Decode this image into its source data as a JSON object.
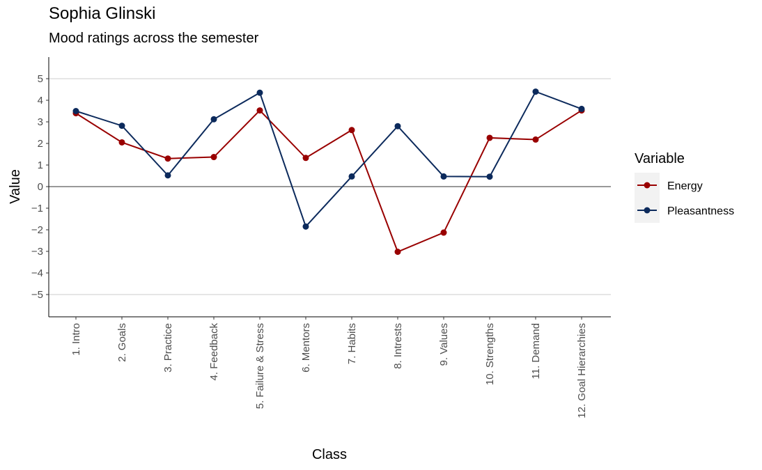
{
  "chart_data": {
    "type": "line",
    "title": "Sophia Glinski",
    "subtitle": "Mood ratings across the semester",
    "xlabel": "Class",
    "ylabel": "Value",
    "categories": [
      "1. Intro",
      "2. Goals",
      "3. Practice",
      "4. Feedback",
      "5. Failure & Stress",
      "6. Mentors",
      "7. Habits",
      "8. Intrests",
      "9. Values",
      "10. Strengths",
      "11. Demand",
      "12. Goal Hierarchies"
    ],
    "ylim": [
      -6,
      6
    ],
    "yticks": [
      -5,
      -4,
      -3,
      -2,
      -1,
      0,
      1,
      2,
      3,
      4,
      5
    ],
    "ytick_labels": [
      "−5",
      "−4",
      "−3",
      "−2",
      "−1",
      "0",
      "1",
      "2",
      "3",
      "4",
      "5"
    ],
    "reference_line_y": 0,
    "grid_lines_y": [
      -5,
      5
    ],
    "legend": {
      "title": "Variable",
      "position": "right"
    },
    "series": [
      {
        "name": "Energy",
        "color": "#990000",
        "values": [
          3.4,
          2.05,
          1.3,
          1.37,
          3.53,
          1.33,
          2.62,
          -3.02,
          -2.13,
          2.26,
          2.18,
          3.53
        ]
      },
      {
        "name": "Pleasantness",
        "color": "#0c2a5c",
        "values": [
          3.5,
          2.82,
          0.52,
          3.12,
          4.35,
          -1.85,
          0.47,
          2.8,
          0.47,
          0.46,
          4.4,
          3.6
        ]
      }
    ]
  }
}
